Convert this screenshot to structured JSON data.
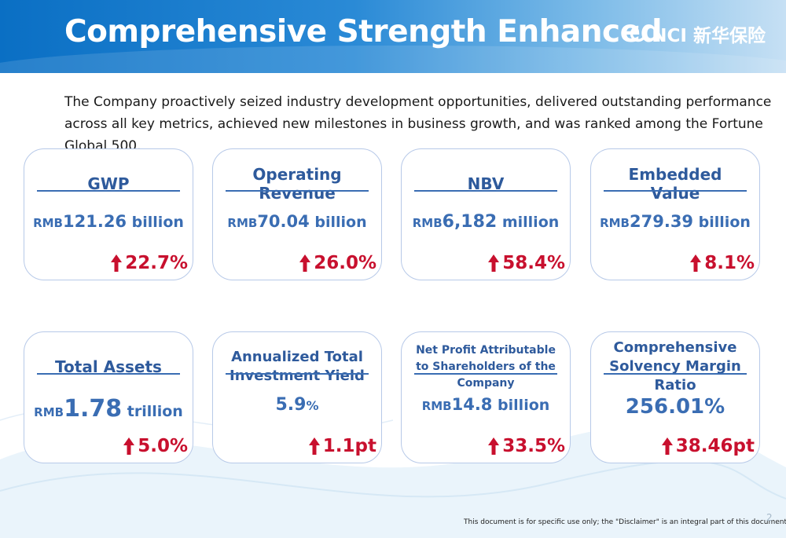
{
  "header": {
    "title": "Comprehensive Strength Enhanced",
    "logo_text": "NCI 新华保险"
  },
  "intro": "The Company proactively seized industry development opportunities, delivered outstanding performance across all key metrics, achieved new milestones in business growth, and was ranked among the Fortune Global 500.",
  "metrics": [
    {
      "label": "GWP",
      "unit_prefix": "RMB",
      "value": "121.26",
      "unit_suffix": " billion",
      "change": "22.7%"
    },
    {
      "label": "Operating Revenue",
      "unit_prefix": "RMB",
      "value": "70.04",
      "unit_suffix": " billion",
      "change": "26.0%"
    },
    {
      "label": "NBV",
      "unit_prefix": "RMB",
      "value": "6,182",
      "unit_suffix": " million",
      "change": "58.4%"
    },
    {
      "label": "Embedded Value",
      "unit_prefix": "RMB",
      "value": "279.39",
      "unit_suffix": " billion",
      "change": "8.1%"
    },
    {
      "label": "Total Assets",
      "unit_prefix": "RMB",
      "value": "1.78",
      "unit_suffix": " trillion",
      "change": "5.0%"
    },
    {
      "label": "Annualized Total Investment Yield",
      "unit_prefix": "",
      "value": "5.9",
      "unit_suffix": "%",
      "change": "1.1pt"
    },
    {
      "label": "Net Profit Attributable to Shareholders of the Company",
      "unit_prefix": "RMB",
      "value": "14.8",
      "unit_suffix": " billion",
      "change": "33.5%"
    },
    {
      "label": "Comprehensive Solvency Margin Ratio",
      "unit_prefix": "",
      "value": "256.01%",
      "unit_suffix": "",
      "change": "38.46pt"
    }
  ],
  "footer": {
    "disclaimer": "This document is for specific use only; the \"Disclaimer\" is an integral part of this document.",
    "page_number": "2"
  },
  "colors": {
    "accent_blue": "#3a6db3",
    "increase_red": "#c8102e"
  }
}
